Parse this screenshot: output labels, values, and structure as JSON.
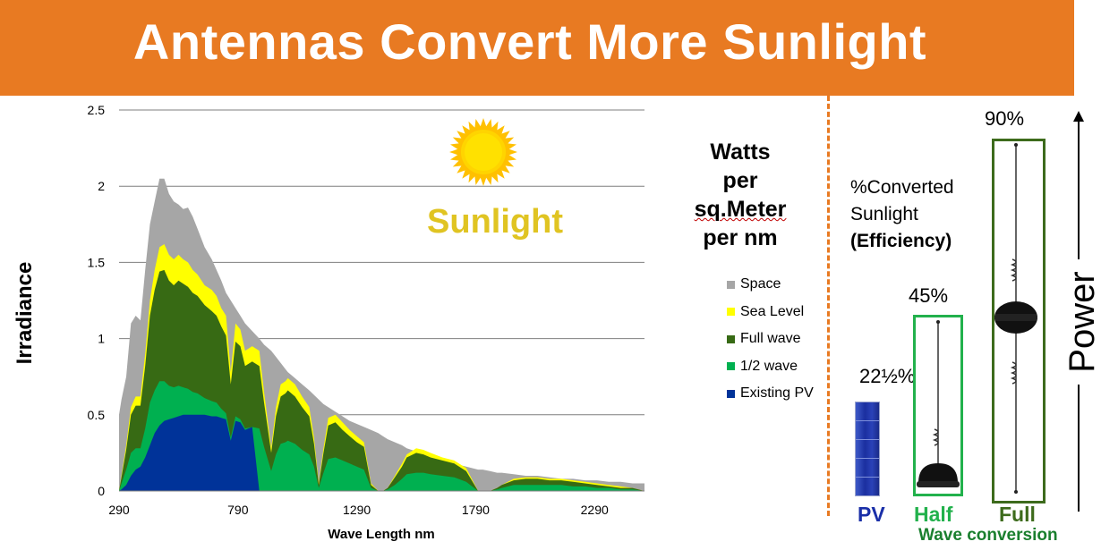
{
  "title": "Antennas Convert More Sunlight",
  "units_label": {
    "line1": "Watts",
    "line2": "per",
    "line3": "sq.Meter",
    "line4": "per nm"
  },
  "sun_label": "Sunlight",
  "conversion": {
    "line1": "%Converted",
    "line2": "Sunlight",
    "line3": "(Efficiency)"
  },
  "percentages": {
    "pv": "22½%",
    "half": "45%",
    "full": "90%"
  },
  "bottom_labels": {
    "pv": "PV",
    "half": "Half",
    "full": "Full",
    "wave_conversion": "Wave conversion"
  },
  "power_label": "Power",
  "colors": {
    "title_bg": "#e87a22",
    "space": "#a6a6a6",
    "sea_level": "#ffff00",
    "full_wave": "#376a14",
    "half_wave": "#00b050",
    "existing_pv": "#003399",
    "pv_text": "#1a2fa8",
    "half_text": "#22b14c",
    "full_text": "#3d6b1c"
  },
  "chart_data": {
    "type": "area",
    "title": "",
    "xlabel": "Wave Length nm",
    "ylabel": "Irradiance",
    "xlim": [
      290,
      2500
    ],
    "ylim": [
      0,
      2.5
    ],
    "xticks": [
      290,
      790,
      1290,
      1790,
      2290
    ],
    "yticks": [
      "0",
      "0.5",
      "1",
      "1.5",
      "2",
      "2.5"
    ],
    "legend_position": "right",
    "x": [
      290,
      300,
      320,
      340,
      360,
      380,
      400,
      420,
      440,
      460,
      480,
      500,
      520,
      540,
      560,
      580,
      600,
      620,
      650,
      680,
      700,
      720,
      740,
      760,
      780,
      800,
      820,
      850,
      880,
      900,
      930,
      950,
      970,
      990,
      1000,
      1030,
      1060,
      1090,
      1110,
      1130,
      1150,
      1170,
      1200,
      1230,
      1260,
      1290,
      1320,
      1350,
      1380,
      1400,
      1420,
      1450,
      1480,
      1500,
      1540,
      1570,
      1600,
      1650,
      1700,
      1750,
      1800,
      1820,
      1850,
      1880,
      1900,
      1950,
      2000,
      2050,
      2100,
      2150,
      2200,
      2250,
      2300,
      2350,
      2400,
      2450,
      2500
    ],
    "series": [
      {
        "name": "Space",
        "values": [
          0.5,
          0.6,
          0.75,
          1.1,
          1.15,
          1.12,
          1.45,
          1.75,
          1.9,
          2.05,
          2.05,
          1.95,
          1.9,
          1.88,
          1.85,
          1.86,
          1.8,
          1.72,
          1.6,
          1.52,
          1.45,
          1.38,
          1.3,
          1.25,
          1.2,
          1.15,
          1.1,
          1.05,
          1.0,
          0.96,
          0.92,
          0.88,
          0.84,
          0.8,
          0.78,
          0.74,
          0.7,
          0.66,
          0.63,
          0.6,
          0.57,
          0.55,
          0.52,
          0.49,
          0.46,
          0.44,
          0.42,
          0.4,
          0.38,
          0.36,
          0.34,
          0.32,
          0.3,
          0.28,
          0.26,
          0.24,
          0.22,
          0.2,
          0.18,
          0.16,
          0.14,
          0.14,
          0.13,
          0.12,
          0.12,
          0.11,
          0.1,
          0.1,
          0.09,
          0.08,
          0.08,
          0.07,
          0.07,
          0.06,
          0.06,
          0.05,
          0.05
        ]
      },
      {
        "name": "Sea Level",
        "values": [
          0,
          0.1,
          0.3,
          0.55,
          0.62,
          0.62,
          0.9,
          1.25,
          1.45,
          1.6,
          1.62,
          1.55,
          1.52,
          1.55,
          1.52,
          1.5,
          1.45,
          1.42,
          1.35,
          1.32,
          1.28,
          1.2,
          1.15,
          0.78,
          1.1,
          1.06,
          0.92,
          0.95,
          0.92,
          0.65,
          0.28,
          0.55,
          0.7,
          0.72,
          0.74,
          0.7,
          0.62,
          0.55,
          0.35,
          0.05,
          0.28,
          0.48,
          0.5,
          0.45,
          0.4,
          0.36,
          0.32,
          0.05,
          0.0,
          0.0,
          0.02,
          0.1,
          0.18,
          0.24,
          0.28,
          0.27,
          0.25,
          0.22,
          0.2,
          0.15,
          0.0,
          0.0,
          0.0,
          0.02,
          0.04,
          0.08,
          0.09,
          0.09,
          0.08,
          0.08,
          0.07,
          0.06,
          0.05,
          0.04,
          0.03,
          0.02,
          0.0
        ]
      },
      {
        "name": "Full wave",
        "values": [
          0,
          0.09,
          0.27,
          0.5,
          0.56,
          0.56,
          0.82,
          1.15,
          1.32,
          1.44,
          1.45,
          1.38,
          1.35,
          1.38,
          1.36,
          1.34,
          1.3,
          1.28,
          1.22,
          1.18,
          1.15,
          1.08,
          1.02,
          0.7,
          0.98,
          0.95,
          0.82,
          0.85,
          0.82,
          0.58,
          0.25,
          0.49,
          0.62,
          0.64,
          0.66,
          0.62,
          0.55,
          0.49,
          0.31,
          0.04,
          0.25,
          0.43,
          0.45,
          0.4,
          0.36,
          0.32,
          0.29,
          0.04,
          0.0,
          0.0,
          0.02,
          0.09,
          0.16,
          0.22,
          0.25,
          0.24,
          0.22,
          0.2,
          0.18,
          0.13,
          0.0,
          0.0,
          0.0,
          0.02,
          0.04,
          0.07,
          0.08,
          0.08,
          0.07,
          0.07,
          0.06,
          0.05,
          0.04,
          0.03,
          0.02,
          0.02,
          0.0
        ]
      },
      {
        "name": "1/2 wave",
        "values": [
          0,
          0.05,
          0.14,
          0.25,
          0.28,
          0.28,
          0.41,
          0.58,
          0.66,
          0.72,
          0.72,
          0.69,
          0.68,
          0.69,
          0.68,
          0.67,
          0.65,
          0.64,
          0.61,
          0.59,
          0.58,
          0.54,
          0.51,
          0.35,
          0.49,
          0.47,
          0.41,
          0.42,
          0.41,
          0.29,
          0.13,
          0.24,
          0.31,
          0.32,
          0.33,
          0.31,
          0.27,
          0.24,
          0.16,
          0.02,
          0.12,
          0.21,
          0.22,
          0.2,
          0.18,
          0.16,
          0.14,
          0.02,
          0.0,
          0.0,
          0.01,
          0.04,
          0.08,
          0.11,
          0.12,
          0.12,
          0.11,
          0.1,
          0.09,
          0.06,
          0.0,
          0.0,
          0.0,
          0.01,
          0.02,
          0.04,
          0.04,
          0.04,
          0.04,
          0.04,
          0.03,
          0.03,
          0.02,
          0.02,
          0.01,
          0.01,
          0.0
        ]
      },
      {
        "name": "Existing PV",
        "values": [
          0,
          0.01,
          0.04,
          0.1,
          0.14,
          0.16,
          0.22,
          0.3,
          0.38,
          0.43,
          0.46,
          0.47,
          0.48,
          0.49,
          0.5,
          0.5,
          0.5,
          0.5,
          0.5,
          0.49,
          0.49,
          0.48,
          0.47,
          0.33,
          0.46,
          0.45,
          0.4,
          0.42,
          0.0,
          0.0,
          0.0,
          0.0,
          0.0,
          0.0,
          0.0,
          0.0,
          0.0,
          0.0,
          0.0,
          0.0,
          0.0,
          0.0,
          0.0,
          0.0,
          0.0,
          0.0,
          0.0,
          0.0,
          0.0,
          0.0,
          0.0,
          0.0,
          0.0,
          0.0,
          0.0,
          0.0,
          0.0,
          0.0,
          0.0,
          0.0,
          0.0,
          0.0,
          0.0,
          0.0,
          0.0,
          0.0,
          0.0,
          0.0,
          0.0,
          0.0,
          0.0,
          0.0,
          0.0,
          0.0,
          0.0,
          0.0,
          0.0
        ]
      }
    ]
  }
}
